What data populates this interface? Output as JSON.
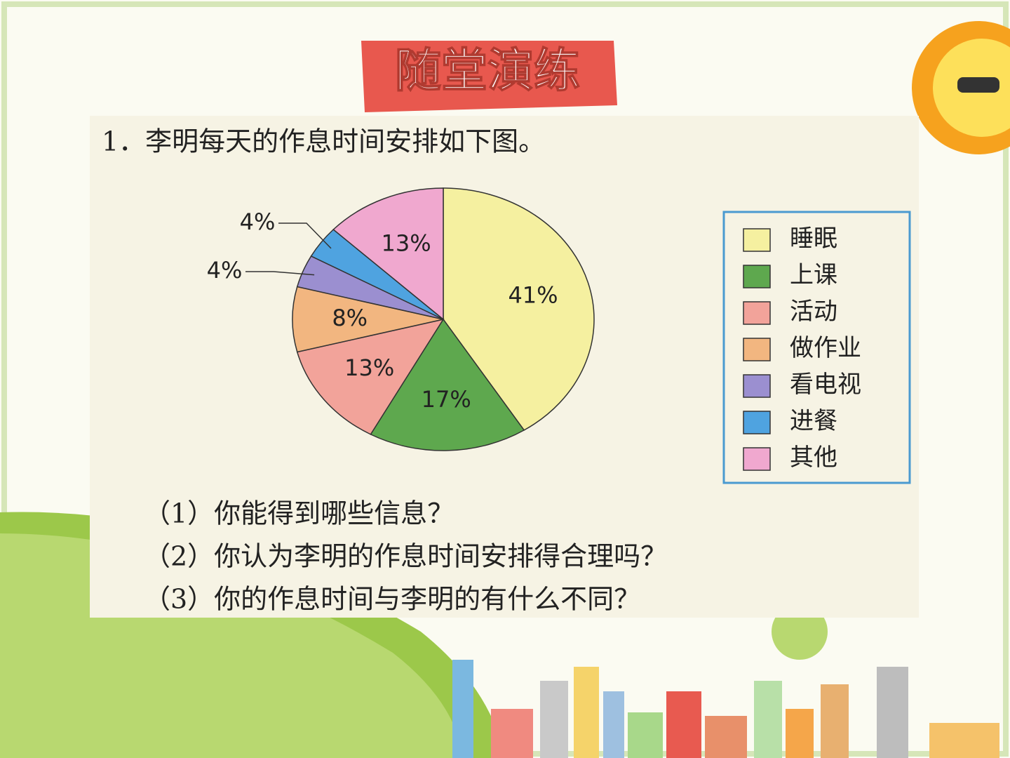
{
  "banner": "随堂演练",
  "question": "1．李明每天的作息时间安排如下图。",
  "sub_questions": [
    "（1）你能得到哪些信息？",
    "（2）你认为李明的作息时间安排得合理吗？",
    "（3）你的作息时间与李明的有什么不同？"
  ],
  "chart_data": {
    "type": "pie",
    "categories": [
      "睡眠",
      "上课",
      "活动",
      "做作业",
      "看电视",
      "进餐",
      "其他"
    ],
    "values": [
      41,
      17,
      13,
      8,
      4,
      4,
      13
    ],
    "value_labels": [
      "41%",
      "17%",
      "13%",
      "8%",
      "4%",
      "4%",
      "13%"
    ],
    "colors": [
      "#f5f0a0",
      "#5ea84e",
      "#f2a39a",
      "#f2b680",
      "#9b8fd0",
      "#4fa3e0",
      "#f0a8cf"
    ],
    "legend": "right"
  }
}
